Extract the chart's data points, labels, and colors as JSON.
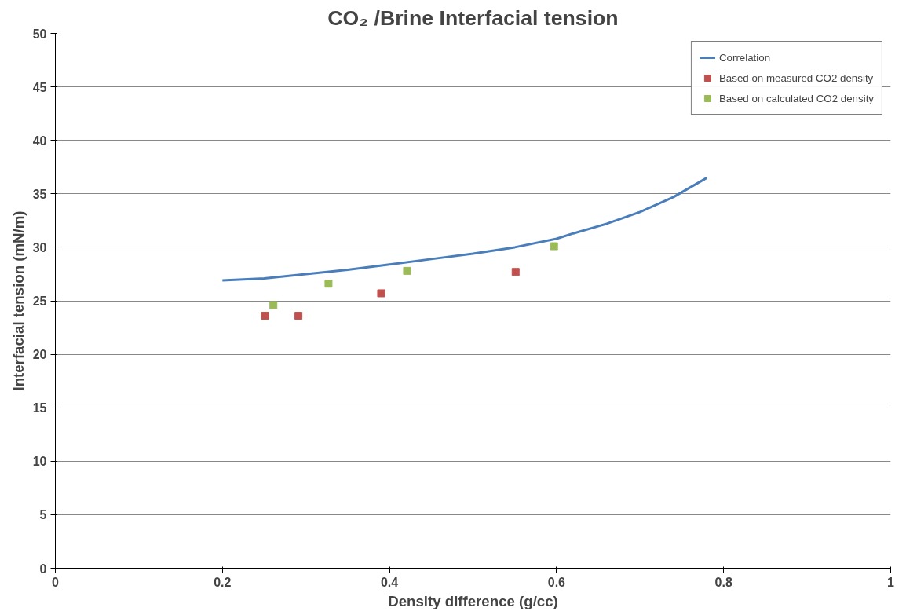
{
  "chart_data": {
    "type": "scatter",
    "title": "CO₂ /Brine Interfacial tension",
    "xlabel": "Density difference (g/cc)",
    "ylabel": "Interfacial tension (mN/m)",
    "xlim": [
      0,
      1
    ],
    "xticks": [
      0,
      0.2,
      0.4,
      0.6,
      0.8,
      1
    ],
    "ylim": [
      0,
      50
    ],
    "yticks": [
      0,
      5,
      10,
      15,
      20,
      25,
      30,
      35,
      40,
      45,
      50
    ],
    "grid": "y",
    "legend": "top right",
    "series": [
      {
        "name": "Correlation",
        "type": "line",
        "marker": "none",
        "color": "#4a7ebb",
        "x": [
          0.2,
          0.25,
          0.3,
          0.35,
          0.4,
          0.45,
          0.5,
          0.55,
          0.6,
          0.62,
          0.66,
          0.7,
          0.74,
          0.78
        ],
        "values": [
          26.9,
          27.1,
          27.5,
          27.9,
          28.4,
          28.9,
          29.4,
          30.0,
          30.8,
          31.3,
          32.2,
          33.3,
          34.7,
          36.5
        ]
      },
      {
        "name": "Based on measured CO2 density",
        "marker": "square",
        "color": "#c0504d",
        "x": [
          0.251,
          0.291,
          0.39,
          0.551
        ],
        "values": [
          23.6,
          23.6,
          25.7,
          27.7
        ]
      },
      {
        "name": "Based on calculated CO2 density",
        "marker": "square",
        "color": "#9bbb59",
        "x": [
          0.261,
          0.327,
          0.421,
          0.597
        ],
        "values": [
          24.6,
          26.6,
          27.8,
          30.1
        ]
      }
    ]
  }
}
